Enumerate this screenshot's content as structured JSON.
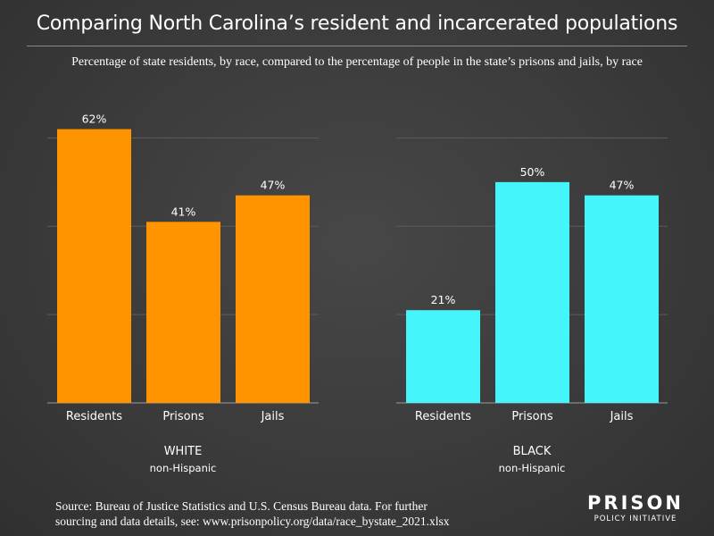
{
  "title": "Comparing North Carolina’s resident and incarcerated populations",
  "subtitle": "Percentage of state residents, by race, compared to the percentage of people in the state’s prisons and jails, by race",
  "source": {
    "line1": "Source: Bureau of Justice Statistics and U.S. Census Bureau data. For further",
    "line2": "sourcing and data details, see: www.prisonpolicy.org/data/race_bystate_2021.xlsx"
  },
  "logo": {
    "top": "PRISON",
    "bottom": "POLICY INITIATIVE"
  },
  "colors": {
    "white_group": "#ff9400",
    "black_group": "#44f5fb",
    "grid": "#5c5c5c",
    "axis": "#9a9a9a"
  },
  "chart_data": [
    {
      "type": "bar",
      "group_label": "WHITE",
      "group_sublabel": "non-Hispanic",
      "categories": [
        "Residents",
        "Prisons",
        "Jails"
      ],
      "values": [
        62,
        41,
        47
      ],
      "data_labels": [
        "62%",
        "41%",
        "47%"
      ],
      "ylim": [
        0,
        70
      ],
      "grid": true,
      "color": "#ff9400"
    },
    {
      "type": "bar",
      "group_label": "BLACK",
      "group_sublabel": "non-Hispanic",
      "categories": [
        "Residents",
        "Prisons",
        "Jails"
      ],
      "values": [
        21,
        50,
        47
      ],
      "data_labels": [
        "21%",
        "50%",
        "47%"
      ],
      "ylim": [
        0,
        70
      ],
      "grid": true,
      "color": "#44f5fb"
    }
  ]
}
